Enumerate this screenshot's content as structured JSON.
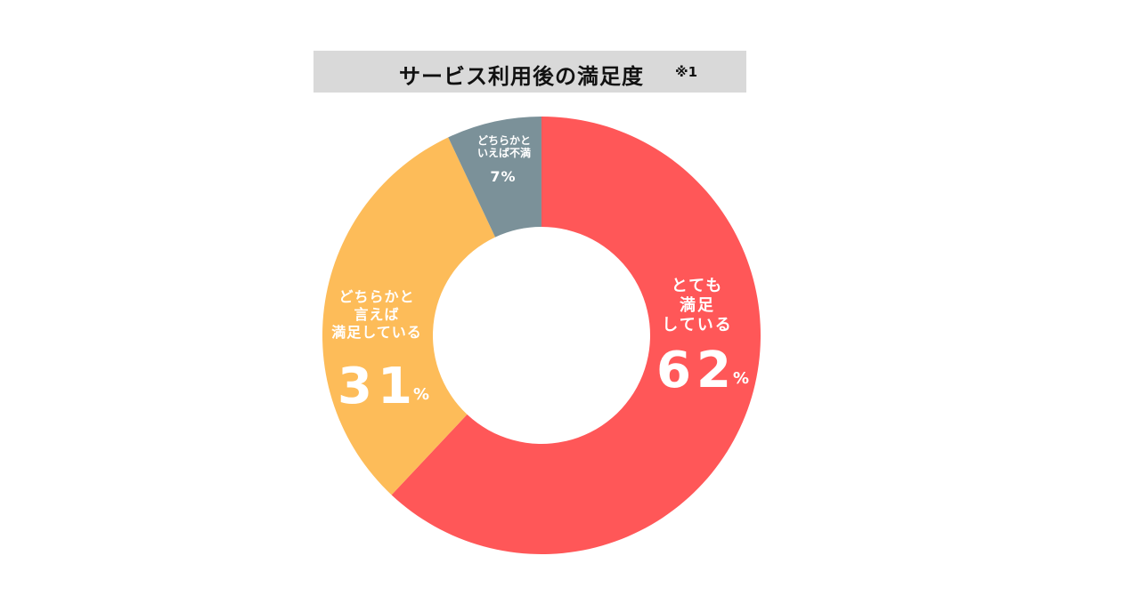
{
  "title": "サービス利用後の満足度",
  "title_note": "※1",
  "colors": {
    "title_bg": "#d9d9d9",
    "background": "#ffffff"
  },
  "chart_data": {
    "type": "pie",
    "donut": true,
    "title": "サービス利用後の満足度",
    "slices": [
      {
        "label_lines": [
          "とても",
          "満足",
          "している"
        ],
        "value": 62,
        "unit": "%",
        "color": "#ff5758"
      },
      {
        "label_lines": [
          "どちらかと",
          "言えば",
          "満足している"
        ],
        "value": 31,
        "unit": "%",
        "color": "#fdbc59"
      },
      {
        "label_lines": [
          "どちらかと",
          "いえば不満"
        ],
        "value": 7,
        "unit": "%",
        "color": "#7b9199"
      }
    ]
  }
}
